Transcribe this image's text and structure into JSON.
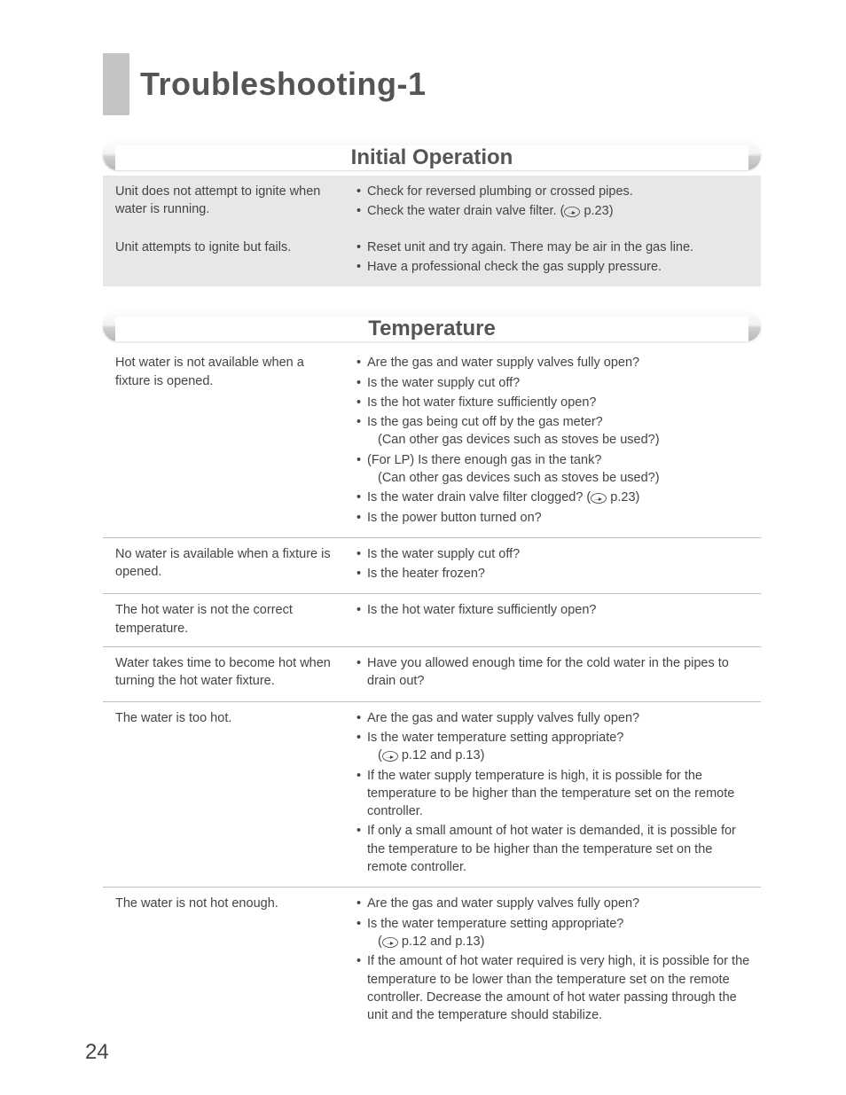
{
  "page_number": "24",
  "title": "Troubleshooting-1",
  "colors": {
    "title_grey_block": "#c4c4c4",
    "title_text": "#555555",
    "section_title": "#555555",
    "body_text": "#444444",
    "shaded_bg": "#e7e7e7",
    "row_border": "#bfbfbf",
    "bar_gradient": [
      "#fdfdfd",
      "#f3f3f3",
      "#d0d0d0",
      "#b8b8b8"
    ]
  },
  "typography": {
    "title_fontsize_pt": 27,
    "section_title_fontsize_pt": 18,
    "body_fontsize_pt": 11,
    "pagenum_fontsize_pt": 18,
    "font_family": "Helvetica"
  },
  "ref_icon": {
    "name": "page-ref-icon",
    "description": "pointing hand page reference glyph"
  },
  "sections": [
    {
      "title": "Initial Operation",
      "style": "shaded",
      "rows": [
        {
          "issue": "Unit does not attempt to ignite when water is running.",
          "checks": [
            {
              "text": "Check for reversed plumbing or crossed pipes."
            },
            {
              "text": "Check the water drain valve filter. (",
              "ref": "p.23",
              "tail": ")"
            }
          ]
        },
        {
          "issue": "Unit attempts to ignite but fails.",
          "checks": [
            {
              "text": "Reset unit and try again. There may be air in the gas line."
            },
            {
              "text": "Have a professional check the gas supply pressure."
            }
          ]
        }
      ]
    },
    {
      "title": "Temperature",
      "style": "bordered",
      "rows": [
        {
          "issue": "Hot water is not available when a fixture is opened.",
          "checks": [
            {
              "text": "Are the gas and water supply valves fully open?"
            },
            {
              "text": "Is the water supply cut off?"
            },
            {
              "text": "Is the hot water fixture sufficiently open?"
            },
            {
              "text": "Is the gas being cut off by the gas meter?",
              "sub": "(Can other gas devices such as stoves be used?)"
            },
            {
              "text": "(For LP) Is there enough gas in the tank?",
              "sub": "(Can other gas devices such as stoves be used?)"
            },
            {
              "text": "Is the water drain valve filter clogged? (",
              "ref": "p.23",
              "tail": ")"
            },
            {
              "text": "Is the power button turned on?"
            }
          ]
        },
        {
          "issue": "No water is available when a fixture is opened.",
          "checks": [
            {
              "text": "Is the water supply cut off?"
            },
            {
              "text": "Is the heater frozen?"
            }
          ]
        },
        {
          "issue": "The hot water is not the correct temperature.",
          "checks": [
            {
              "text": "Is the hot water fixture sufficiently open?"
            }
          ]
        },
        {
          "issue": "Water takes time to become hot when turning the hot water fixture.",
          "checks": [
            {
              "text": "Have you allowed enough time for the cold water in the pipes to drain out?"
            }
          ]
        },
        {
          "issue": "The water is too hot.",
          "checks": [
            {
              "text": "Are the gas and water supply valves fully open?"
            },
            {
              "text": "Is the water temperature setting appropriate?",
              "sub_ref_prefix": "(",
              "ref": "p.12  and p.13",
              "sub_ref_suffix": ")"
            },
            {
              "text": "If the water supply temperature is high, it is possible for the temperature to be higher than the temperature set on the remote controller."
            },
            {
              "text": "If only a small amount of hot water is demanded, it is possible for the temperature to be higher than the temperature set on the remote controller."
            }
          ]
        },
        {
          "issue": "The water is not hot enough.",
          "checks": [
            {
              "text": "Are the gas and water supply valves fully open?"
            },
            {
              "text": "Is the water temperature setting appropriate?",
              "sub_ref_prefix": "(",
              "ref": "p.12 and p.13",
              "sub_ref_suffix": ")"
            },
            {
              "text": "If the amount of hot water required is very high, it is possible for the temperature to be lower than the temperature set on the remote controller. Decrease the amount of hot water passing through the unit and the temperature should stabilize."
            }
          ]
        }
      ]
    }
  ]
}
